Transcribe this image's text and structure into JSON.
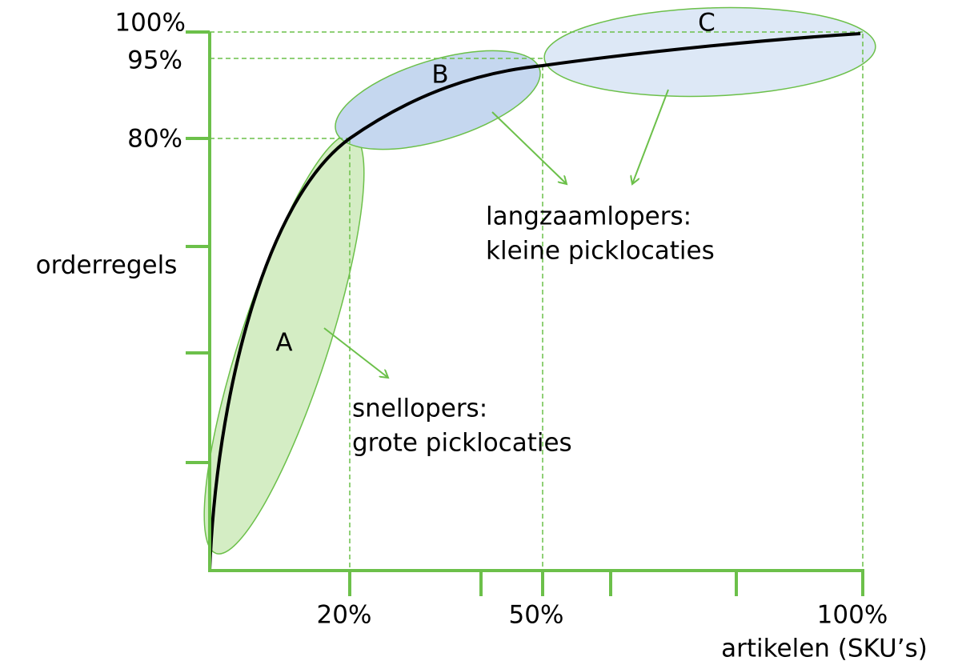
{
  "y_axis": {
    "label": "orderregels",
    "ticks": [
      "100%",
      "95%",
      "80%"
    ]
  },
  "x_axis": {
    "label": "artikelen (SKU’s)",
    "ticks": [
      "20%",
      "50%",
      "100%"
    ]
  },
  "zones": [
    {
      "label": "A"
    },
    {
      "label": "B"
    },
    {
      "label": "C"
    }
  ],
  "annotations": [
    {
      "lines": [
        "snellopers:",
        "grote picklocaties"
      ]
    },
    {
      "lines": [
        "langzaamlopers:",
        "kleine picklocaties"
      ]
    }
  ]
}
